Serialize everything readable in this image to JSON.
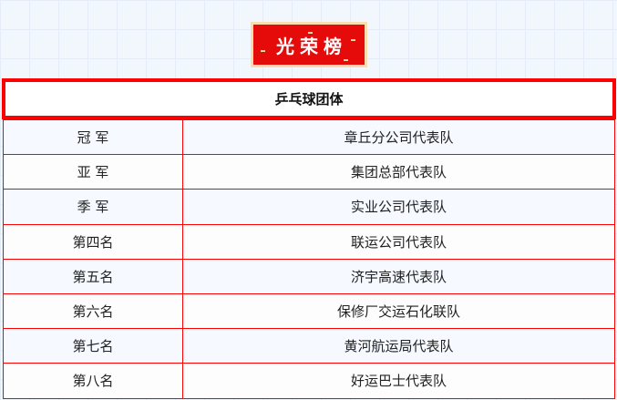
{
  "banner": {
    "title": "光荣榜"
  },
  "section_title": "乒乓球团体",
  "colors": {
    "accent": "#ff0000",
    "banner_bg": "#e60b0b",
    "banner_border": "#fbdcae"
  },
  "rows": [
    {
      "rank": "冠 军",
      "team": "章丘分公司代表队"
    },
    {
      "rank": "亚 军",
      "team": "集团总部代表队"
    },
    {
      "rank": "季 军",
      "team": "实业公司代表队"
    },
    {
      "rank": "第四名",
      "team": "联运公司代表队"
    },
    {
      "rank": "第五名",
      "team": "济宇高速代表队"
    },
    {
      "rank": "第六名",
      "team": "保修厂交运石化联队"
    },
    {
      "rank": "第七名",
      "team": "黄河航运局代表队"
    },
    {
      "rank": "第八名",
      "team": "好运巴士代表队"
    }
  ]
}
